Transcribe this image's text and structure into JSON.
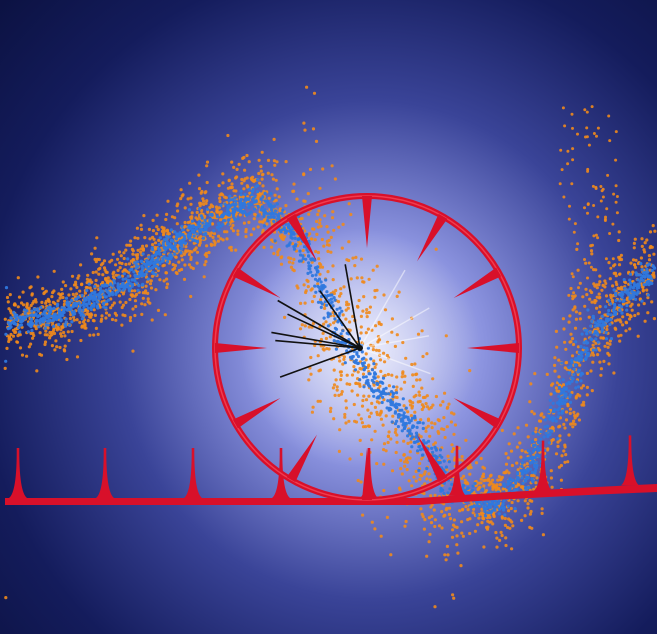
{
  "colors": {
    "background_edge": "#0f1547",
    "background_glow": "#cfd3f5",
    "noisy_points": "#f08a1c",
    "clean_points": "#2f78de",
    "comb_and_wheel": "#d8102a",
    "needles": "#111111"
  },
  "elements": {
    "background": "radial-gradient",
    "scatter_band": "orange-noisy-points-around-blue-trace",
    "frequency_comb": "red-baseline-with-teeth",
    "wheel": "red-ring-with-inward-spokes",
    "needles": "black-lines-from-wheel-hub"
  }
}
